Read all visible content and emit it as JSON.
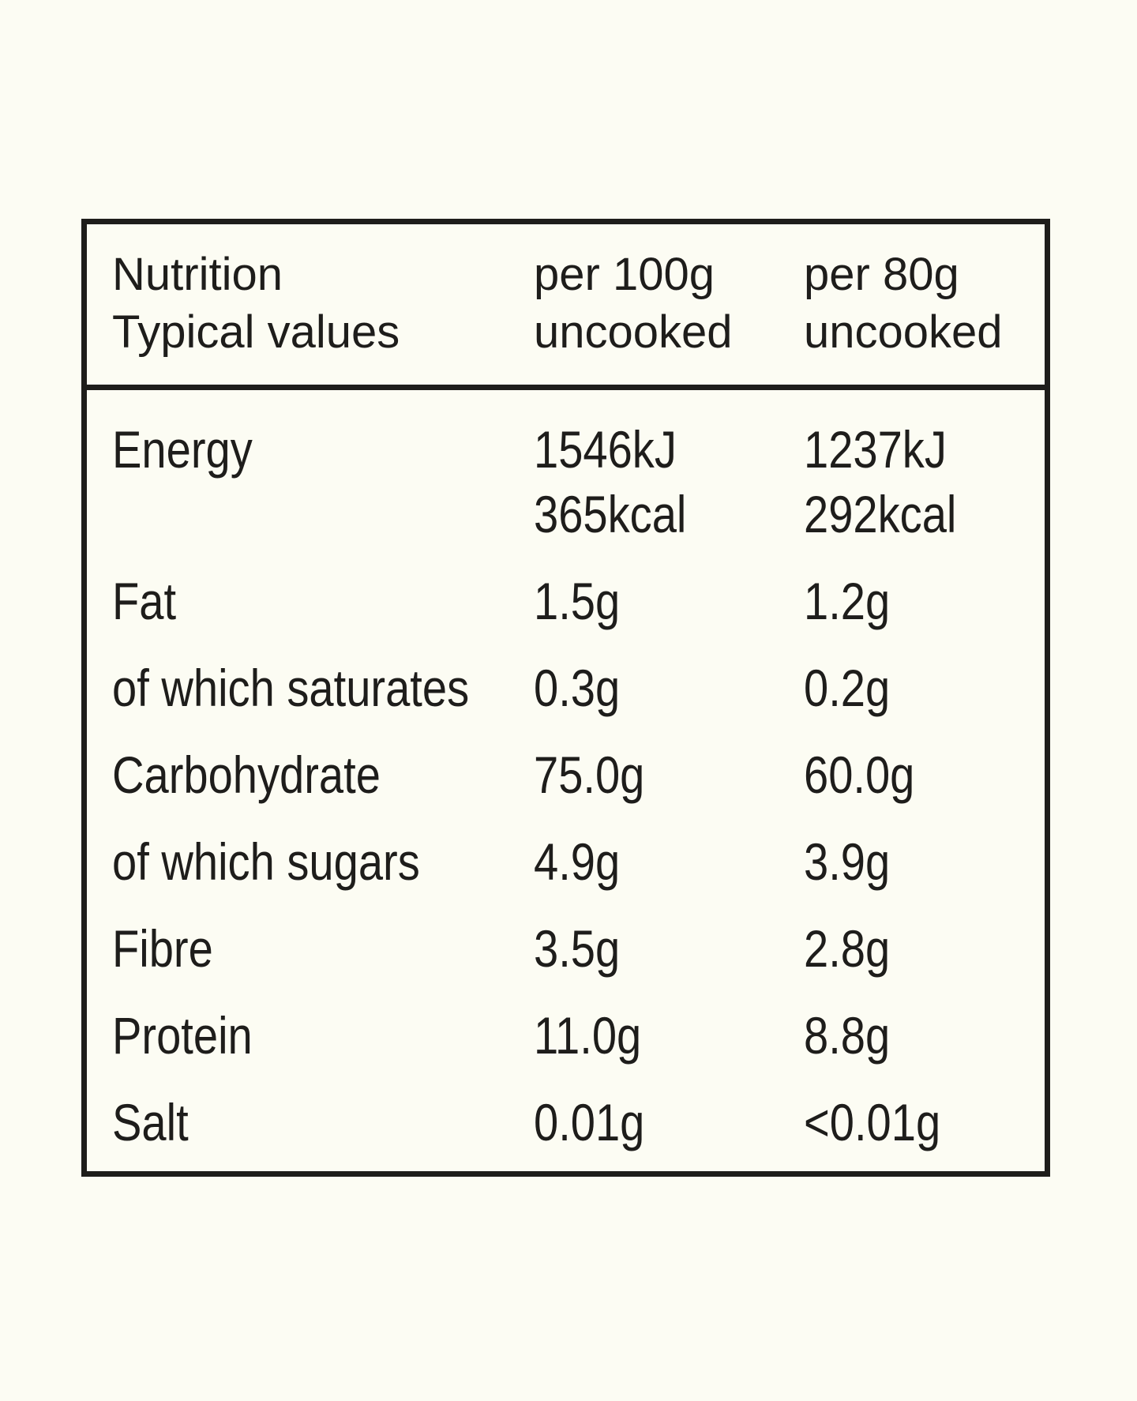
{
  "colors": {
    "background": "#FCFCF3",
    "ink": "#1E1D1B"
  },
  "table": {
    "header": {
      "col1": {
        "line1": "Nutrition",
        "line2": "Typical values"
      },
      "col2": {
        "line1": "per 100g",
        "line2": "uncooked"
      },
      "col3": {
        "line1": "per 80g",
        "line2": "uncooked"
      }
    },
    "rows": [
      {
        "label": "Energy",
        "per_100g": "1546kJ\n365kcal",
        "per_80g": "1237kJ\n292kcal"
      },
      {
        "label": "Fat",
        "per_100g": "1.5g",
        "per_80g": "1.2g"
      },
      {
        "label": "of which saturates",
        "per_100g": "0.3g",
        "per_80g": "0.2g"
      },
      {
        "label": "Carbohydrate",
        "per_100g": "75.0g",
        "per_80g": "60.0g"
      },
      {
        "label": "of which sugars",
        "per_100g": "4.9g",
        "per_80g": "3.9g"
      },
      {
        "label": "Fibre",
        "per_100g": "3.5g",
        "per_80g": "2.8g"
      },
      {
        "label": "Protein",
        "per_100g": "11.0g",
        "per_80g": "8.8g"
      },
      {
        "label": "Salt",
        "per_100g": "0.01g",
        "per_80g": "<0.01g"
      }
    ]
  }
}
